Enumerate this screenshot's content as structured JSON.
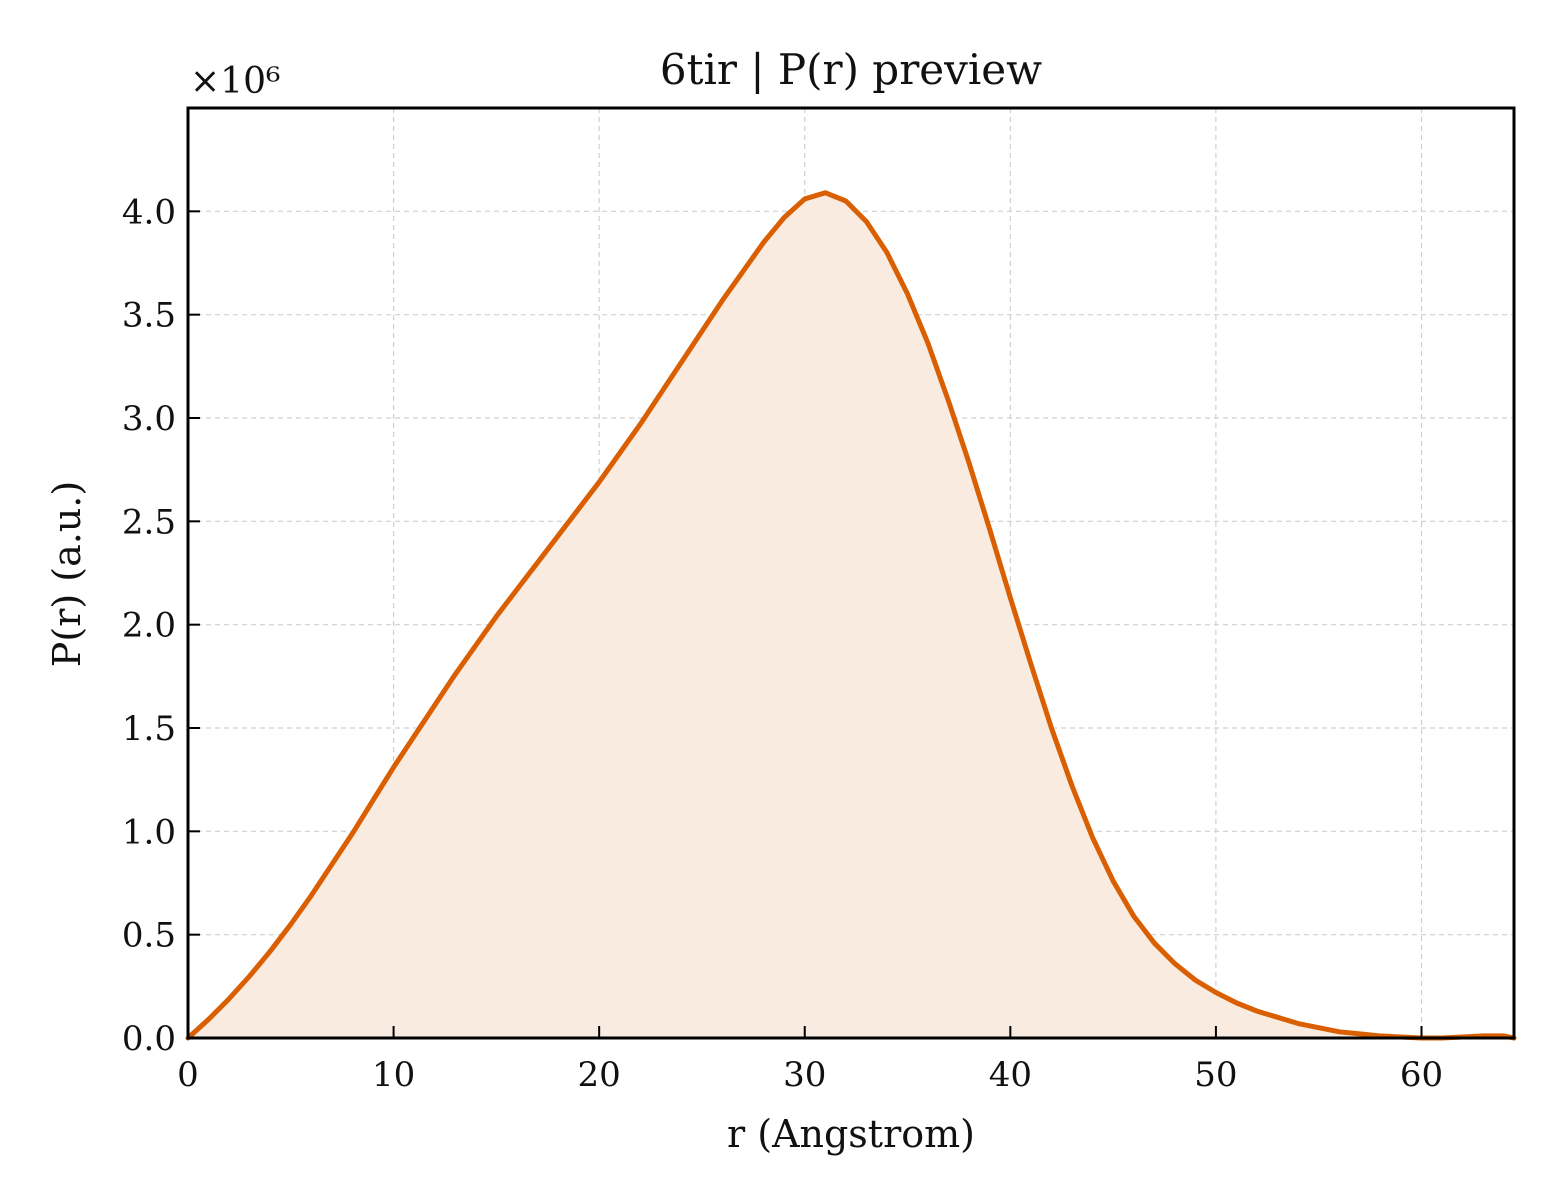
{
  "chart_data": {
    "type": "area",
    "title": "6tir | P(r) preview",
    "xlabel": "r (Angstrom)",
    "ylabel": "P(r) (a.u.)",
    "y_multiplier_label": "×10⁶",
    "xlim": [
      0,
      64.5
    ],
    "ylim": [
      0,
      4.5
    ],
    "x_ticks": [
      0,
      10,
      20,
      30,
      40,
      50,
      60
    ],
    "x_tick_labels": [
      "0",
      "10",
      "20",
      "30",
      "40",
      "50",
      "60"
    ],
    "y_ticks": [
      0,
      0.5,
      1.0,
      1.5,
      2.0,
      2.5,
      3.0,
      3.5,
      4.0
    ],
    "y_tick_labels": [
      "0.0",
      "0.5",
      "1.0",
      "1.5",
      "2.0",
      "2.5",
      "3.0",
      "3.5",
      "4.0"
    ],
    "grid": true,
    "line_color": "#d95f02",
    "fill_color": "#f9ebe0",
    "series": [
      {
        "x": [
          0,
          1,
          2,
          3,
          4,
          5,
          6,
          7,
          8,
          9,
          10,
          11,
          12,
          13,
          14,
          15,
          16,
          17,
          18,
          19,
          20,
          21,
          22,
          23,
          24,
          25,
          26,
          27,
          28,
          29,
          30,
          31,
          32,
          33,
          34,
          35,
          36,
          37,
          38,
          39,
          40,
          41,
          42,
          43,
          44,
          45,
          46,
          47,
          48,
          49,
          50,
          51,
          52,
          53,
          54,
          55,
          56,
          57,
          58,
          59,
          60,
          61,
          62,
          63,
          64,
          64.5
        ],
        "y": [
          0.0,
          0.09,
          0.19,
          0.3,
          0.42,
          0.55,
          0.69,
          0.84,
          0.99,
          1.15,
          1.31,
          1.46,
          1.61,
          1.76,
          1.9,
          2.04,
          2.17,
          2.3,
          2.43,
          2.56,
          2.69,
          2.83,
          2.97,
          3.12,
          3.27,
          3.42,
          3.57,
          3.71,
          3.85,
          3.97,
          4.06,
          4.09,
          4.05,
          3.95,
          3.8,
          3.6,
          3.36,
          3.08,
          2.78,
          2.46,
          2.13,
          1.81,
          1.5,
          1.22,
          0.97,
          0.76,
          0.59,
          0.46,
          0.36,
          0.28,
          0.22,
          0.17,
          0.13,
          0.1,
          0.07,
          0.05,
          0.03,
          0.02,
          0.01,
          0.005,
          0.0,
          0.0,
          0.005,
          0.01,
          0.01,
          0.0
        ]
      }
    ]
  }
}
